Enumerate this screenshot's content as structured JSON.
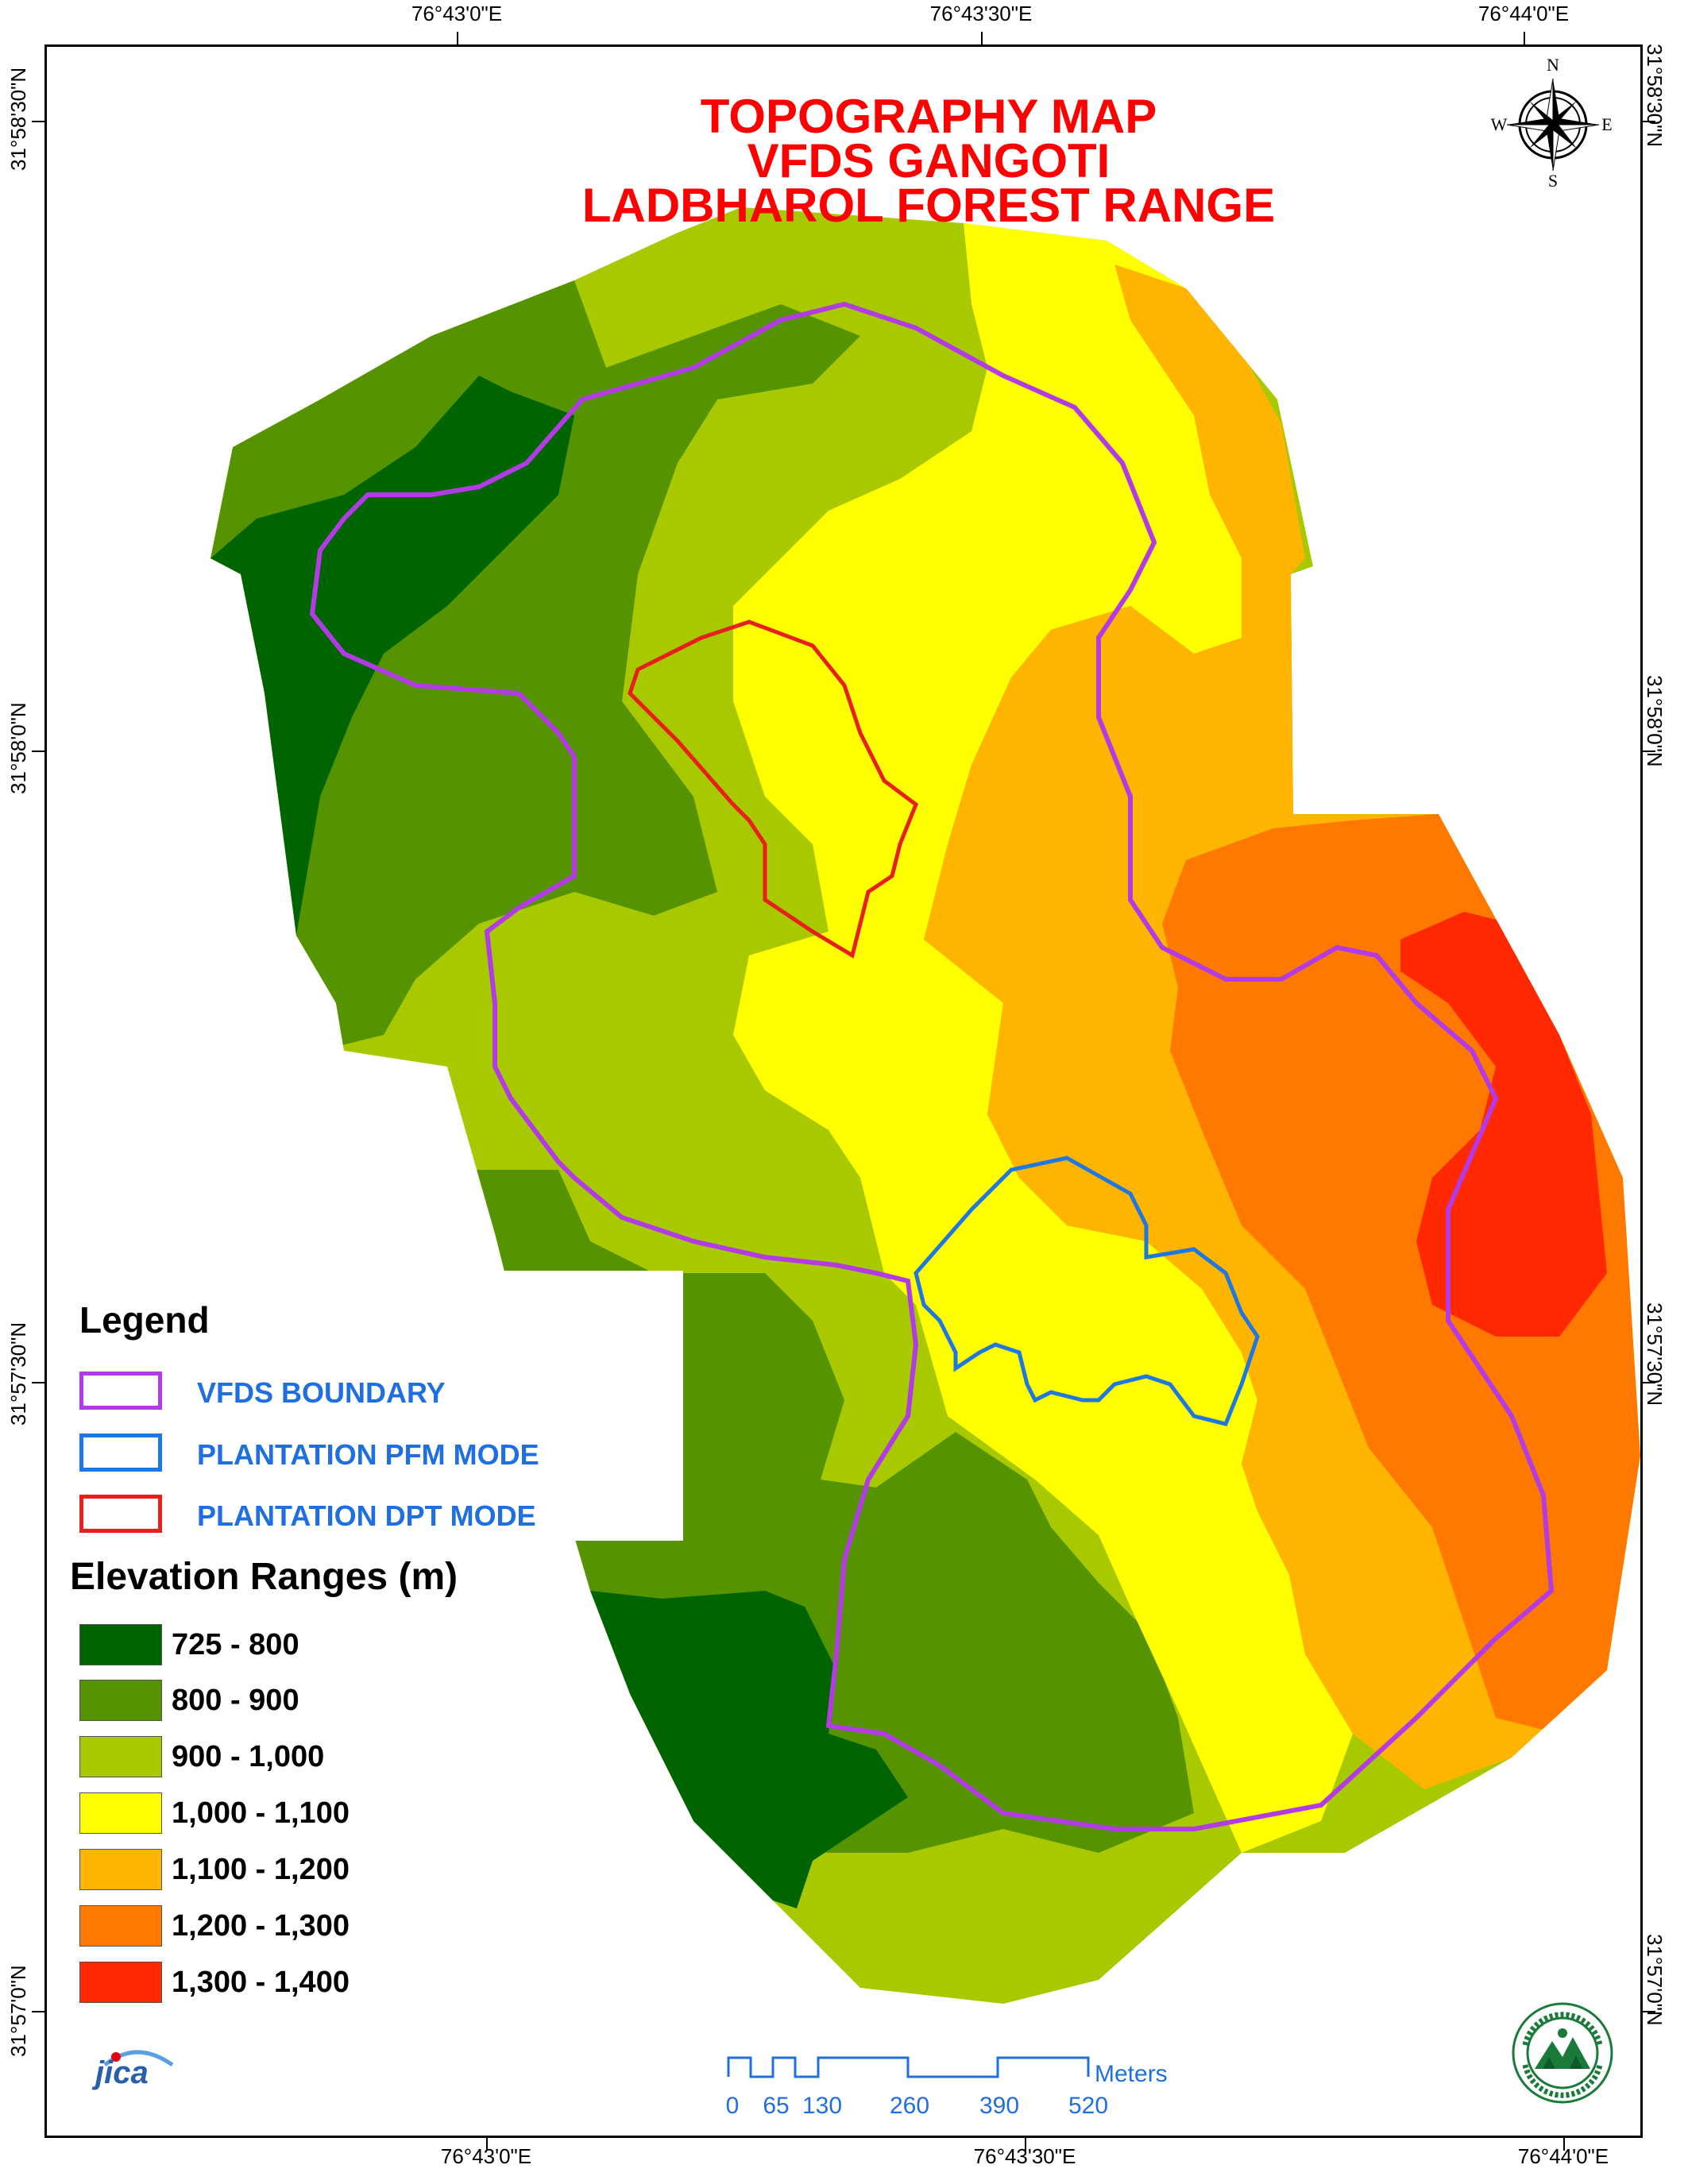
{
  "title": {
    "line1": "TOPOGRAPHY MAP",
    "line2": "VFDS GANGOTI",
    "line3": "LADBHAROL FOREST RANGE"
  },
  "coordinates": {
    "top": [
      "76°43'0\"E",
      "76°43'30\"E",
      "76°44'0\"E"
    ],
    "bottom": [
      "76°43'0\"E",
      "76°43'30\"E",
      "76°44'0\"E"
    ],
    "left": [
      "31°58'30\"N",
      "31°58'0\"N",
      "31°57'30\"N",
      "31°57'0\"N"
    ],
    "right": [
      "31°58'30\"N",
      "31°58'0\"N",
      "31°57'30\"N",
      "31°57'0\"N"
    ]
  },
  "north_arrow": {
    "n": "N",
    "s": "S",
    "e": "E",
    "w": "W",
    "icon": "compass-rose-icon"
  },
  "legend": {
    "title": "Legend",
    "boundaries": [
      {
        "label": "VFDS BOUNDARY",
        "color": "#b23be6"
      },
      {
        "label": "PLANTATION PFM MODE",
        "color": "#1f78e0"
      },
      {
        "label": "PLANTATION DPT MODE",
        "color": "#e8201c"
      }
    ],
    "elevation_title": "Elevation Ranges (m)",
    "elevation_ranges": [
      {
        "label": "725 - 800",
        "color": "#006400"
      },
      {
        "label": "800 - 900",
        "color": "#559400"
      },
      {
        "label": "900 - 1,000",
        "color": "#a8c800"
      },
      {
        "label": "1,000 - 1,100",
        "color": "#ffff00"
      },
      {
        "label": "1,100 - 1,200",
        "color": "#ffb400"
      },
      {
        "label": "1,200 - 1,300",
        "color": "#ff7800"
      },
      {
        "label": "1,300 - 1,400",
        "color": "#ff2800"
      }
    ]
  },
  "scale_bar": {
    "unit": "Meters",
    "ticks": [
      "0",
      "65",
      "130",
      "260",
      "390",
      "520"
    ]
  },
  "logos": {
    "left": "jica",
    "left_icon": "jica-logo-icon",
    "right_icon": "forest-department-seal-icon"
  }
}
